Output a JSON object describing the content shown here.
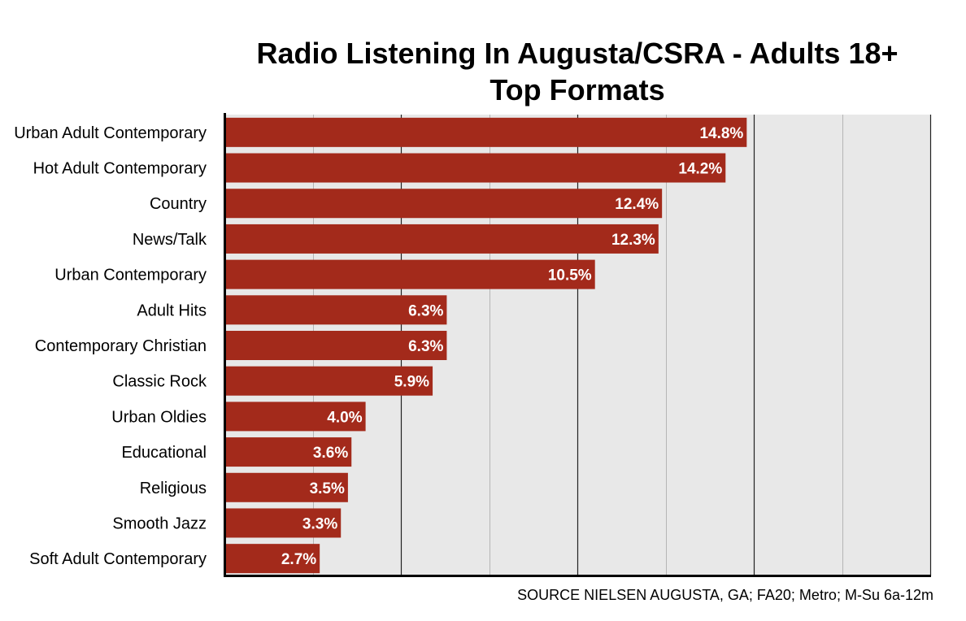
{
  "chart_data": {
    "type": "bar",
    "orientation": "horizontal",
    "title": "Radio Listening In Augusta/CSRA - Adults 18+",
    "subtitle": "Top Formats",
    "categories": [
      "Urban Adult Contemporary",
      "Hot Adult Contemporary",
      "Country",
      "News/Talk",
      "Urban Contemporary",
      "Adult Hits",
      "Contemporary Christian",
      "Classic Rock",
      "Urban Oldies",
      "Educational",
      "Religious",
      "Smooth Jazz",
      "Soft Adult Contemporary"
    ],
    "values": [
      14.8,
      14.2,
      12.4,
      12.3,
      10.5,
      6.3,
      6.3,
      5.9,
      4.0,
      3.6,
      3.5,
      3.3,
      2.7
    ],
    "value_labels": [
      "14.8%",
      "14.2%",
      "12.4%",
      "12.3%",
      "10.5%",
      "6.3%",
      "6.3%",
      "5.9%",
      "4.0%",
      "3.6%",
      "3.5%",
      "3.3%",
      "2.7%"
    ],
    "xlim": [
      0,
      20
    ],
    "grid": true,
    "bar_color": "#a32a1b",
    "plot_background": "#e8e8e8",
    "source": "SOURCE NIELSEN AUGUSTA, GA; FA20; Metro; M-Su 6a-12m"
  }
}
